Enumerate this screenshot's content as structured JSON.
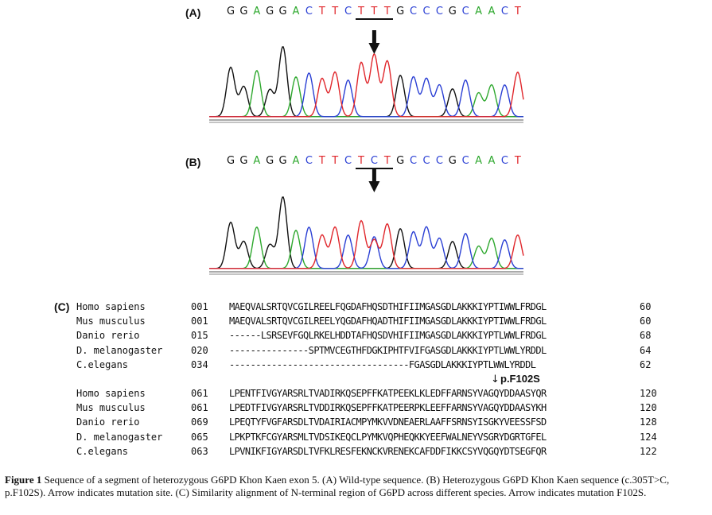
{
  "panel_a": {
    "label": "(A)",
    "bases": [
      "G",
      "G",
      "A",
      "G",
      "G",
      "A",
      "C",
      "T",
      "T",
      "C",
      "T",
      "T",
      "T",
      "G",
      "C",
      "C",
      "C",
      "G",
      "C",
      "A",
      "A",
      "C",
      "T"
    ],
    "underline_range": [
      10,
      12
    ]
  },
  "panel_b": {
    "label": "(B)",
    "bases": [
      "G",
      "G",
      "A",
      "G",
      "G",
      "A",
      "C",
      "T",
      "T",
      "C",
      "T",
      "C",
      "T",
      "G",
      "C",
      "C",
      "C",
      "G",
      "C",
      "A",
      "A",
      "C",
      "T"
    ],
    "underline_range": [
      10,
      12
    ]
  },
  "base_colors": {
    "A": "#2ea82e",
    "C": "#2a3fd4",
    "G": "#111111",
    "T": "#e0262b"
  },
  "panel_c": {
    "label": "(C)",
    "block1": [
      {
        "species": "Homo sapiens",
        "start": "001",
        "seq": "MAEQVALSRTQVCGILREELFQGDAFHQSDTHIFIIMGASGDLAKKKIYPTIWWLFRDGL",
        "end": "60"
      },
      {
        "species": "Mus musculus",
        "start": "001",
        "seq": "MAEQVALSRTQVCGILREELYQGDAFHQADTHIFIIMGASGDLAKKKIYPTIWWLFRDGL",
        "end": "60"
      },
      {
        "species": "Danio rerio",
        "start": "015",
        "seq": "------LSRSEVFGQLRKELHDDTAFHQSDVHIFIIMGASGDLAKKKIYPTLWWLFRDGL",
        "end": "68"
      },
      {
        "species": "D. melanogaster",
        "start": "020",
        "seq": "---------------SPTMVCEGTHFDGKIPHTFVIFGASGDLAKKKIYPTLWWLYRDDL",
        "end": "64"
      },
      {
        "species": "C.elegans",
        "start": "034",
        "seq": "----------------------------------FGASGDLAKKKIYPTLWWLYRDDL",
        "end": "62"
      }
    ],
    "mutation_label": "p.F102S",
    "mutation_arrow": "↓",
    "block2": [
      {
        "species": "Homo sapiens",
        "start": "061",
        "seq": "LPENTFIVGYARSRLTVADIRKQSEPFFKATPEEKLKLEDFFARNSYVAGQYDDAASYQR",
        "end": "120"
      },
      {
        "species": "Mus musculus",
        "start": "061",
        "seq": "LPEDTFIVGYARSRLTVDDIRKQSEPFFKATPEERPKLEEFFARNSYVAGQYDDAASYKH",
        "end": "120"
      },
      {
        "species": "Danio rerio",
        "start": "069",
        "seq": "LPEQTYFVGFARSDLTVDAIRIACMPYMKVVDNEAERLAAFFSRNSYISGKYVEESSFSD",
        "end": "128"
      },
      {
        "species": "D. melanogaster",
        "start": "065",
        "seq": "LPKPTKFCGYARSMLTVDSIKEQCLPYMKVQPHEQKKYEEFWALNEYVSGRYDGRTGFEL",
        "end": "124"
      },
      {
        "species": "C.elegans",
        "start": "063",
        "seq": "LPVNIKFIGYARSDLTVFKLRESFEKNCKVRENEKCAFDDFIKKCSYVQGQYDTSEGFQR",
        "end": "122"
      }
    ]
  },
  "caption": {
    "label": "Figure 1",
    "text": " Sequence of a segment of heterozygous G6PD Khon Kaen exon 5. (A) Wild-type sequence. (B) Heterozygous G6PD Khon Kaen sequence (c.305T>C, p.F102S). Arrow indicates mutation site. (C) Similarity alignment of N-terminal region of G6PD across different species. Arrow indicates mutation F102S."
  }
}
